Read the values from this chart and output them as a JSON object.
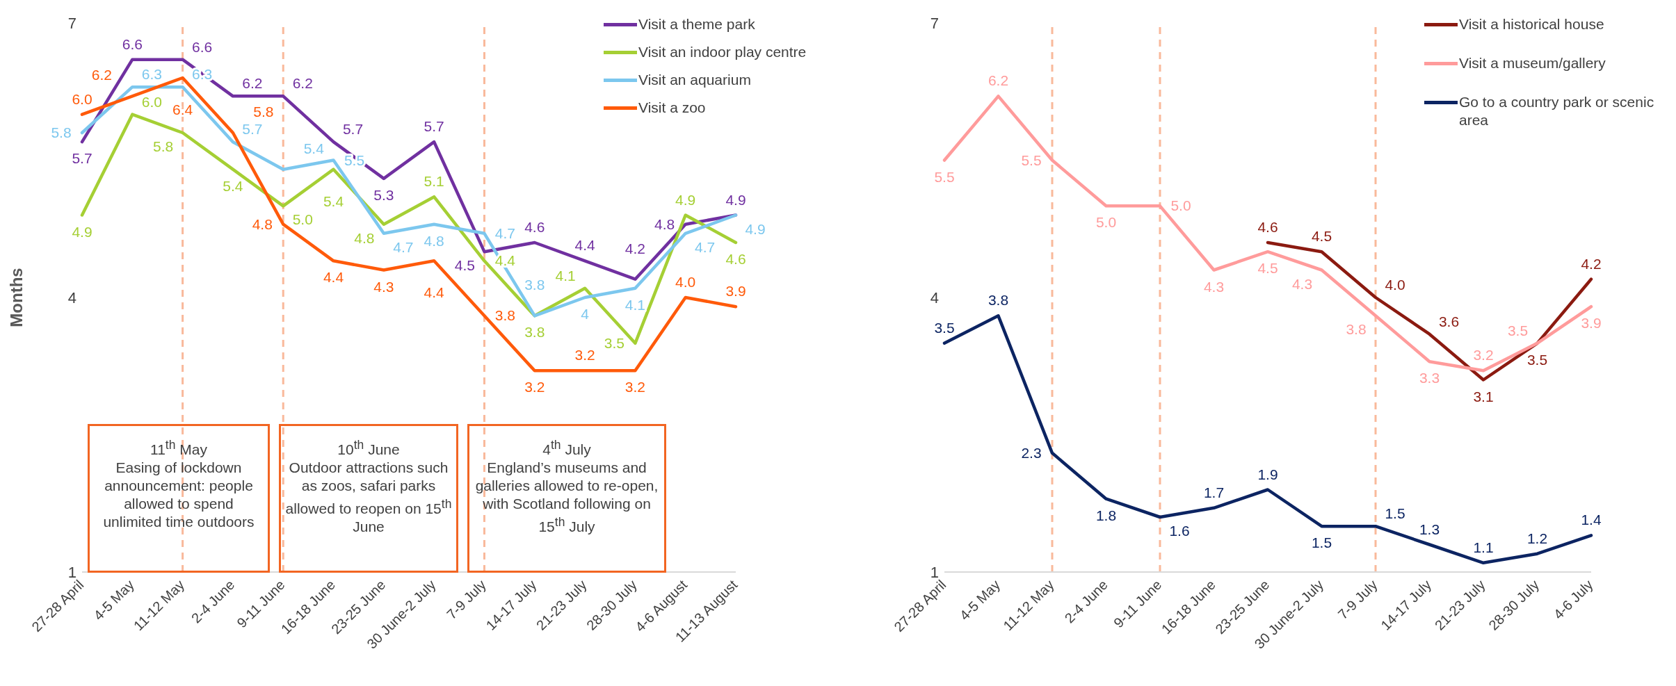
{
  "chart_data": [
    {
      "type": "line",
      "ylabel": "Months",
      "categories": [
        "27-28 April",
        "4-5 May",
        "11-12 May",
        "2-4 June",
        "9-11 June",
        "16-18 June",
        "23-25 June",
        "30 June-2 July",
        "7-9 July",
        "14-17 July",
        "21-23 July",
        "28-30 July",
        "4-6 August",
        "11-13 August"
      ],
      "series": [
        {
          "name": "Visit a theme park",
          "color": "#7030a0",
          "values": [
            5.7,
            6.6,
            6.6,
            6.2,
            6.2,
            5.7,
            5.3,
            5.7,
            4.5,
            4.6,
            4.4,
            4.2,
            4.8,
            4.9
          ],
          "value_labels": [
            "5.7",
            "6.6",
            "6.6",
            "6.2",
            "6.2",
            "5.7",
            "5.3",
            "5.7",
            "4.5",
            "4.6",
            "4.4",
            "4.2",
            "4.8",
            "4.9"
          ]
        },
        {
          "name": "Visit an indoor play centre",
          "color": "#a5cf34",
          "values": [
            4.9,
            6.0,
            5.8,
            5.4,
            5.0,
            5.4,
            4.8,
            5.1,
            4.4,
            3.8,
            4.1,
            3.5,
            4.9,
            4.6
          ],
          "value_labels": [
            "4.9",
            "6.0",
            "5.8",
            "5.4",
            "5.0",
            "5.4",
            "4.8",
            "5.1",
            "4.4",
            "3.8",
            "4.1",
            "3.5",
            "4.9",
            "4.6"
          ]
        },
        {
          "name": "Visit an aquarium",
          "color": "#7cc7ee",
          "values": [
            5.8,
            6.3,
            6.3,
            5.7,
            5.4,
            5.5,
            4.7,
            4.8,
            4.7,
            3.8,
            4.0,
            4.1,
            4.7,
            4.9
          ],
          "value_labels": [
            "5.8",
            "6.3",
            "6.3",
            "5.7",
            "5.4",
            "5.5",
            "4.7",
            "4.8",
            "4.7",
            "3.8",
            "4",
            "4.1",
            "4.7",
            "4.9"
          ]
        },
        {
          "name": "Visit a zoo",
          "color": "#ff5a0a",
          "values": [
            6.0,
            6.2,
            6.4,
            5.8,
            4.8,
            4.4,
            4.3,
            4.4,
            3.8,
            3.2,
            3.2,
            3.2,
            4.0,
            3.9
          ],
          "value_labels": [
            "6.0",
            "6.2",
            "6.4",
            "5.8",
            "4.8",
            "4.4",
            "4.3",
            "4.4",
            "3.8",
            "3.2",
            "3.2",
            "3.2",
            "4.0",
            "3.9"
          ]
        }
      ],
      "ylim": [
        1,
        7
      ],
      "yticks": [
        1,
        4,
        7
      ],
      "grid": false,
      "legend": "top right",
      "marker": "none",
      "line_style": "solid",
      "ref_lines": [
        {
          "axis": "x",
          "value": "11-12 May",
          "color": "#f9b99b",
          "line_style": "dashed"
        },
        {
          "axis": "x",
          "value": "9-11 June",
          "color": "#f9b99b",
          "line_style": "dashed"
        },
        {
          "axis": "x",
          "value": "7-9 July",
          "color": "#f9b99b",
          "line_style": "dashed"
        }
      ],
      "annotations": [
        "11$^{th}$ May\nEasing of lockdown announcement: people allowed to spend unlimited time outdoors",
        "10$^{th}$ June\nOutdoor attractions such as zoos, safari parks allowed to reopen on 15$^{th}$ June",
        "4$^{th}$ July\nEngland’s museums and galleries allowed to re-open, with Scotland following on 15$^{th}$ July"
      ]
    },
    {
      "type": "line",
      "categories": [
        "27-28 April",
        "4-5 May",
        "11-12 May",
        "2-4 June",
        "9-11 June",
        "16-18 June",
        "23-25 June",
        "30 June-2 July",
        "7-9 July",
        "14-17 July",
        "21-23 July",
        "28-30 July",
        "4-6 July"
      ],
      "series": [
        {
          "name": "Visit a historical house",
          "color": "#8b1a10",
          "values": [
            null,
            null,
            null,
            null,
            null,
            null,
            4.6,
            4.5,
            4.0,
            3.6,
            3.1,
            3.5,
            4.2
          ],
          "value_labels": [
            null,
            null,
            null,
            null,
            null,
            null,
            "4.6",
            "4.5",
            "4.0",
            "3.6",
            "3.1",
            "3.5",
            "4.2"
          ]
        },
        {
          "name": "Visit a museum/gallery",
          "color": "#ff9b9b",
          "values": [
            5.5,
            6.2,
            5.5,
            5.0,
            5.0,
            4.3,
            4.5,
            4.3,
            3.8,
            3.3,
            3.2,
            3.5,
            3.9
          ],
          "value_labels": [
            "5.5",
            "6.2",
            "5.5",
            "5.0",
            "5.0",
            "4.3",
            "4.5",
            "4.3",
            "3.8",
            "3.3",
            "3.2",
            "3.5",
            "3.9"
          ]
        },
        {
          "name": "Go to a country park or scenic area",
          "color": "#0c2462",
          "values": [
            3.5,
            3.8,
            2.3,
            1.8,
            1.6,
            1.7,
            1.9,
            1.5,
            1.5,
            1.3,
            1.1,
            1.2,
            1.4
          ],
          "value_labels": [
            "3.5",
            "3.8",
            "2.3",
            "1.8",
            "1.6",
            "1.7",
            "1.9",
            "1.5",
            "1.5",
            "1.3",
            "1.1",
            "1.2",
            "1.4"
          ]
        }
      ],
      "ylim": [
        1,
        7
      ],
      "yticks": [
        1,
        4,
        7
      ],
      "grid": false,
      "legend": "top right",
      "marker": "none",
      "line_style": "solid",
      "ref_lines": [
        {
          "axis": "x",
          "value": "11-12 May",
          "color": "#f9b99b",
          "line_style": "dashed"
        },
        {
          "axis": "x",
          "value": "9-11 June",
          "color": "#f9b99b",
          "line_style": "dashed"
        },
        {
          "axis": "x",
          "value": "7-9 July",
          "color": "#f9b99b",
          "line_style": "dashed"
        }
      ]
    }
  ]
}
